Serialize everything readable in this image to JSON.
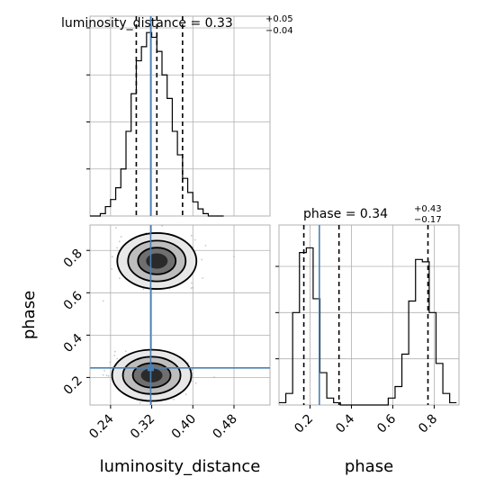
{
  "chart_data": {
    "type": "corner",
    "truth": {
      "luminosity_distance": 0.318,
      "phase": 0.245
    },
    "panels": [
      {
        "id": "hist_luminosity_distance",
        "type": "histogram",
        "variable": "luminosity_distance",
        "title": {
          "text": "luminosity_distance = 0.33",
          "upper": "+0.05",
          "lower": "−0.04"
        },
        "quantiles": [
          0.29,
          0.33,
          0.38
        ],
        "xlim": [
          0.2,
          0.55
        ],
        "bins": [
          0.2,
          0.21,
          0.22,
          0.23,
          0.24,
          0.25,
          0.26,
          0.27,
          0.28,
          0.29,
          0.3,
          0.31,
          0.32,
          0.33,
          0.34,
          0.35,
          0.36,
          0.37,
          0.38,
          0.39,
          0.4,
          0.41,
          0.42,
          0.43,
          0.44,
          0.45,
          0.46
        ],
        "counts": [
          0,
          0,
          1,
          4,
          7,
          12,
          20,
          36,
          52,
          66,
          72,
          78,
          76,
          70,
          60,
          50,
          36,
          26,
          16,
          10,
          6,
          3,
          1,
          0,
          0,
          0
        ]
      },
      {
        "id": "hist_phase",
        "type": "histogram",
        "variable": "phase",
        "title": {
          "text": "phase = 0.34",
          "upper": "+0.43",
          "lower": "−0.17"
        },
        "quantiles": [
          0.17,
          0.34,
          0.77
        ],
        "xlim": [
          0.05,
          0.92
        ],
        "xticks": [
          0.2,
          0.4,
          0.6,
          0.8
        ],
        "bins": [
          0.05,
          0.083,
          0.116,
          0.149,
          0.182,
          0.215,
          0.248,
          0.281,
          0.314,
          0.347,
          0.38,
          0.413,
          0.446,
          0.479,
          0.512,
          0.545,
          0.578,
          0.611,
          0.644,
          0.677,
          0.71,
          0.743,
          0.776,
          0.809,
          0.842,
          0.875,
          0.908
        ],
        "counts": [
          1,
          5,
          40,
          66,
          68,
          46,
          14,
          3,
          1,
          0,
          0,
          0,
          0,
          0,
          0,
          0,
          3,
          8,
          22,
          45,
          63,
          62,
          40,
          18,
          5,
          1
        ]
      },
      {
        "id": "scatter_2d",
        "type": "contour",
        "x": "luminosity_distance",
        "y": "phase",
        "xlim": [
          0.2,
          0.55
        ],
        "ylim": [
          0.07,
          0.92
        ],
        "xticks": [
          0.24,
          0.32,
          0.4,
          0.48
        ],
        "yticks": [
          0.2,
          0.4,
          0.6,
          0.8
        ],
        "xlabel": "luminosity_distance",
        "ylabel": "phase",
        "clusters": [
          {
            "center": [
              0.33,
              0.75
            ],
            "sx": 0.035,
            "sy": 0.06
          },
          {
            "center": [
              0.32,
              0.21
            ],
            "sx": 0.035,
            "sy": 0.055
          }
        ]
      }
    ],
    "xlabels": [
      "luminosity_distance",
      "phase"
    ],
    "ylabel": "phase",
    "tick_labels": {
      "x_left": [
        "0.24",
        "0.32",
        "0.40",
        "0.48"
      ],
      "x_right": [
        "0.2",
        "0.4",
        "0.6",
        "0.8"
      ],
      "y_left": [
        "0.2",
        "0.4",
        "0.6",
        "0.8"
      ]
    },
    "colors": {
      "truth": "#4a7fb5",
      "hist": "#000000",
      "grid": "#b0b0b0"
    }
  }
}
